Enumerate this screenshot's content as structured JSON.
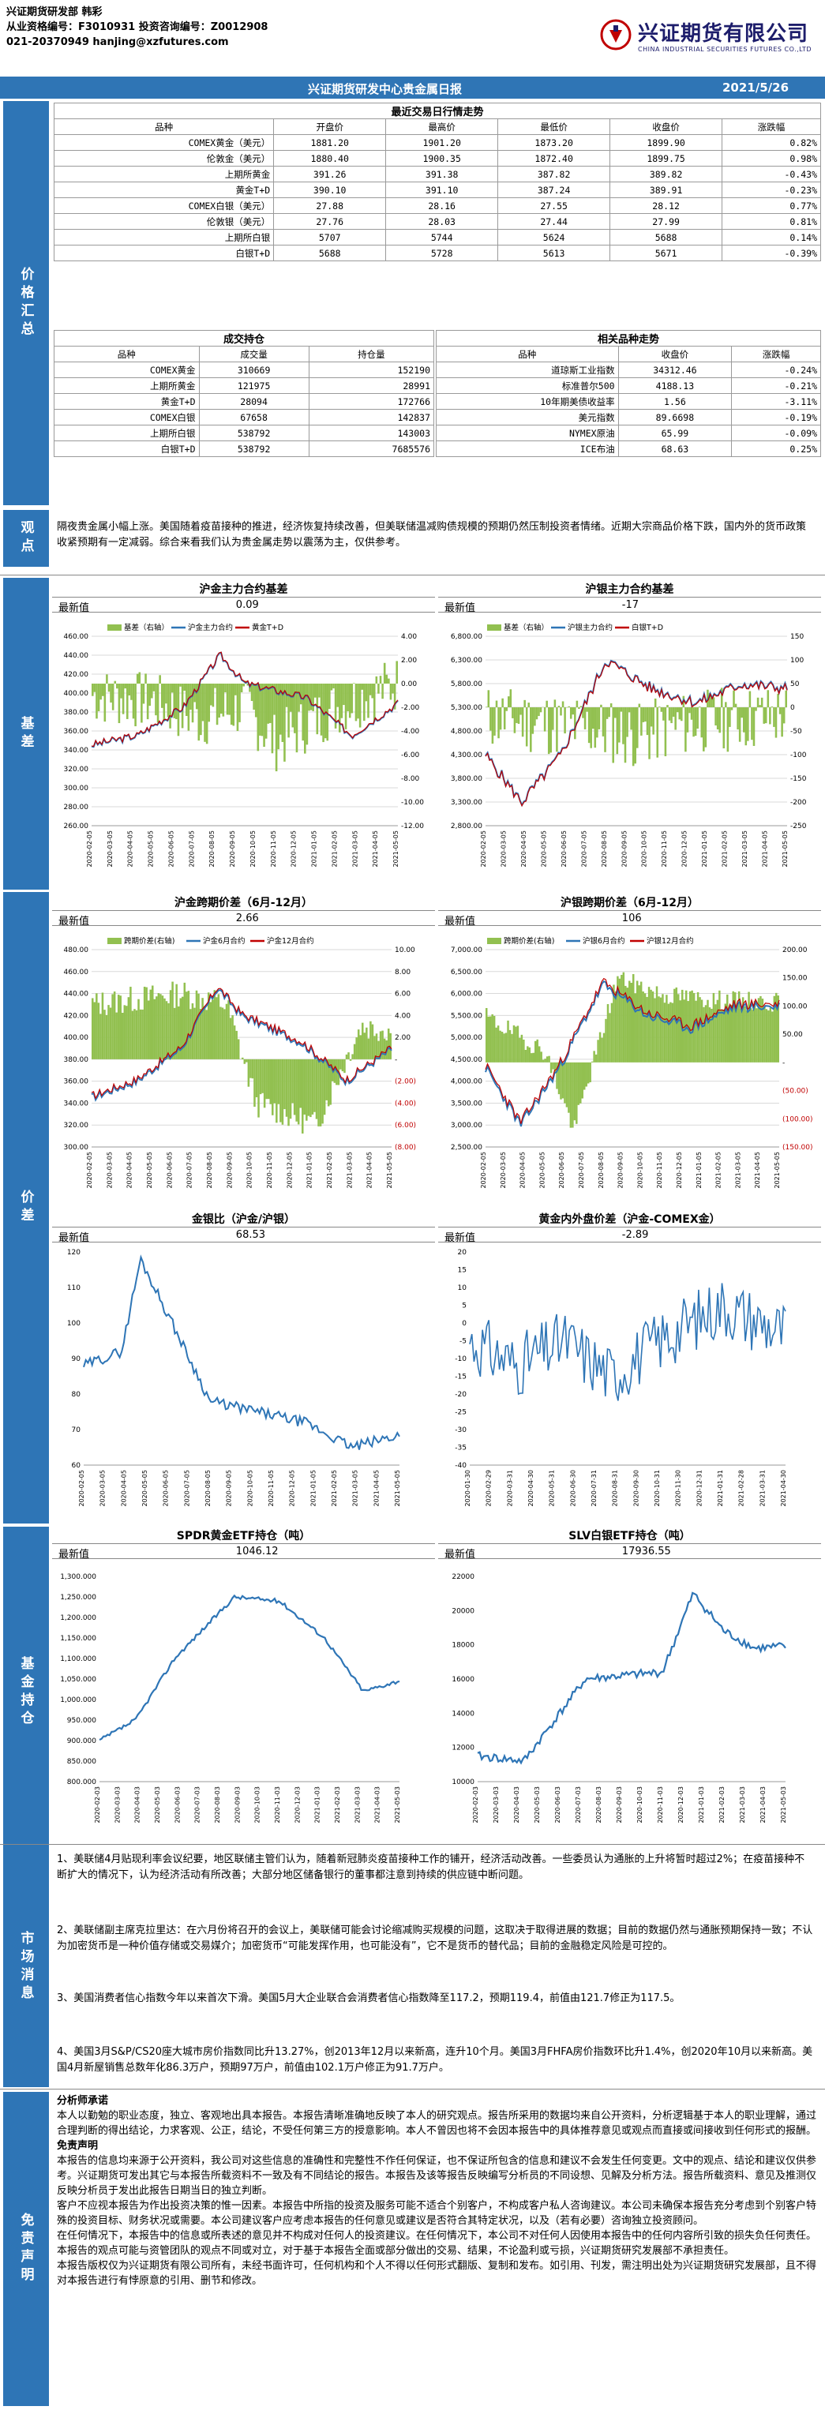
{
  "header": {
    "line1": "兴证期货研发部 韩彩",
    "line2": "从业资格编号：F3010931 投资咨询编号：Z0012908",
    "line3": "021-20370949 hanjing@xzfutures.com",
    "company_cn": "兴证期货有限公司",
    "company_en": "CHINA INDUSTRIAL SECURITIES FUTURES CO.,LTD"
  },
  "title_bar": {
    "title": "兴证期货研发中心贵金属日报",
    "date": "2021/5/26"
  },
  "sections": {
    "price": "价格汇总",
    "view": "观点",
    "basis": "基差",
    "spread": "价差",
    "etf": "基金持仓",
    "news": "市场消息",
    "disclaimer": "免责声明"
  },
  "quotes": {
    "heading": "最近交易日行情走势",
    "columns": [
      "品种",
      "开盘价",
      "最高价",
      "最低价",
      "收盘价",
      "涨跌幅"
    ],
    "rows": [
      [
        "COMEX黄金（美元）",
        "1881.20",
        "1901.20",
        "1873.20",
        "1899.90",
        "0.82%"
      ],
      [
        "伦敦金（美元）",
        "1880.40",
        "1900.35",
        "1872.40",
        "1899.75",
        "0.98%"
      ],
      [
        "上期所黄金",
        "391.26",
        "391.38",
        "387.82",
        "389.82",
        "-0.43%"
      ],
      [
        "黄金T+D",
        "390.10",
        "391.10",
        "387.24",
        "389.91",
        "-0.23%"
      ],
      [
        "COMEX白银（美元）",
        "27.88",
        "28.16",
        "27.55",
        "28.12",
        "0.77%"
      ],
      [
        "伦敦银（美元）",
        "27.76",
        "28.03",
        "27.44",
        "27.99",
        "0.81%"
      ],
      [
        "上期所白银",
        "5707",
        "5744",
        "5624",
        "5688",
        "0.14%"
      ],
      [
        "白银T+D",
        "5688",
        "5728",
        "5613",
        "5671",
        "-0.39%"
      ]
    ]
  },
  "volume": {
    "heading": "成交持仓",
    "columns": [
      "品种",
      "成交量",
      "持仓量"
    ],
    "rows": [
      [
        "COMEX黄金",
        "310669",
        "152190"
      ],
      [
        "上期所黄金",
        "121975",
        "28991"
      ],
      [
        "黄金T+D",
        "28094",
        "172766"
      ],
      [
        "COMEX白银",
        "67658",
        "142837"
      ],
      [
        "上期所白银",
        "538792",
        "143003"
      ],
      [
        "白银T+D",
        "538792",
        "7685576"
      ]
    ]
  },
  "related": {
    "heading": "相关品种走势",
    "columns": [
      "品种",
      "收盘价",
      "涨跌幅"
    ],
    "rows": [
      [
        "道琼斯工业指数",
        "34312.46",
        "-0.24%"
      ],
      [
        "标准普尔500",
        "4188.13",
        "-0.21%"
      ],
      [
        "10年期美债收益率",
        "1.56",
        "-3.11%"
      ],
      [
        "美元指数",
        "89.6698",
        "-0.19%"
      ],
      [
        "NYMEX原油",
        "65.99",
        "-0.09%"
      ],
      [
        "ICE布油",
        "68.63",
        "0.25%"
      ]
    ]
  },
  "view_text": "隔夜贵金属小幅上涨。美国随着疫苗接种的推进，经济恢复持续改善，但美联储温减购债规模的预期仍然压制投资者情绪。近期大宗商品价格下跌，国内外的货币政策收紧预期有一定减弱。综合来看我们认为贵金属走势以震荡为主，仅供参考。",
  "latest_label": "最新值",
  "charts": {
    "gold_basis": {
      "title": "沪金主力合约基差",
      "latest": "0.09",
      "legend": [
        "基差（右轴）",
        "沪金主力合约",
        "黄金T+D"
      ]
    },
    "silver_basis": {
      "title": "沪银主力合约基差",
      "latest": "-17",
      "legend": [
        "基差（右轴）",
        "沪银主力合约",
        "白银T+D"
      ]
    },
    "gold_spread": {
      "title": "沪金跨期价差（6月-12月）",
      "latest": "2.66",
      "legend": [
        "跨期价差(右轴)",
        "沪金6月合约",
        "沪金12月合约"
      ]
    },
    "silver_spread": {
      "title": "沪银跨期价差（6月-12月）",
      "latest": "106",
      "legend": [
        "跨期价差(右轴)",
        "沪银6月合约",
        "沪银12月合约"
      ]
    },
    "gold_silver_ratio": {
      "title": "金银比（沪金/沪银）",
      "latest": "68.53"
    },
    "gold_inout": {
      "title": "黄金内外盘价差（沪金-COMEX金）",
      "latest": "-2.89"
    },
    "spdr": {
      "title": "SPDR黄金ETF持仓（吨）",
      "latest": "1046.12"
    },
    "slv": {
      "title": "SLV白银ETF持仓（吨）",
      "latest": "17936.55"
    }
  },
  "axes": {
    "gold_basis_left": [
      "460.00",
      "440.00",
      "420.00",
      "400.00",
      "380.00",
      "360.00",
      "340.00",
      "320.00",
      "300.00",
      "280.00",
      "260.00"
    ],
    "gold_basis_right": [
      "4.00",
      "2.00",
      "0.00",
      "-2.00",
      "-4.00",
      "-6.00",
      "-8.00",
      "-10.00",
      "-12.00"
    ],
    "silver_basis_left": [
      "6,800.00",
      "6,300.00",
      "5,800.00",
      "5,300.00",
      "4,800.00",
      "4,300.00",
      "3,800.00",
      "3,300.00",
      "2,800.00"
    ],
    "silver_basis_right": [
      "150",
      "100",
      "50",
      "0",
      "-50",
      "-100",
      "-150",
      "-200",
      "-250"
    ],
    "gold_spread_left": [
      "480.00",
      "460.00",
      "440.00",
      "420.00",
      "400.00",
      "380.00",
      "360.00",
      "340.00",
      "320.00",
      "300.00"
    ],
    "gold_spread_right": [
      "10.00",
      "8.00",
      "6.00",
      "4.00",
      "2.00",
      "-",
      "(2.00)",
      "(4.00)",
      "(6.00)",
      "(8.00)"
    ],
    "silver_spread_left": [
      "7,000.00",
      "6,500.00",
      "6,000.00",
      "5,500.00",
      "5,000.00",
      "4,500.00",
      "4,000.00",
      "3,500.00",
      "3,000.00",
      "2,500.00"
    ],
    "silver_spread_right": [
      "200.00",
      "150.00",
      "100.00",
      "50.00",
      "-",
      "(50.00)",
      "(100.00)",
      "(150.00)"
    ],
    "ratio_left": [
      "120",
      "110",
      "100",
      "90",
      "80",
      "70",
      "60"
    ],
    "inout_left": [
      "20",
      "15",
      "10",
      "5",
      "0",
      "-5",
      "-10",
      "-15",
      "-20",
      "-25",
      "-30",
      "-35",
      "-40"
    ],
    "spdr_left": [
      "1,300.000",
      "1,250.000",
      "1,200.000",
      "1,150.000",
      "1,100.000",
      "1,050.000",
      "1,000.000",
      "950.000",
      "900.000",
      "850.000",
      "800.000"
    ],
    "slv_left": [
      "22000",
      "20000",
      "18000",
      "16000",
      "14000",
      "12000",
      "10000"
    ],
    "dates_a": [
      "2020-02-05",
      "2020-03-05",
      "2020-04-05",
      "2020-05-05",
      "2020-06-05",
      "2020-07-05",
      "2020-08-05",
      "2020-09-05",
      "2020-10-05",
      "2020-11-05",
      "2020-12-05",
      "2021-01-05",
      "2021-02-05",
      "2021-03-05",
      "2021-04-05",
      "2021-05-05"
    ],
    "dates_b": [
      "2020-01-30",
      "2020-02-29",
      "2020-03-31",
      "2020-04-30",
      "2020-05-31",
      "2020-06-30",
      "2020-07-31",
      "2020-08-31",
      "2020-09-30",
      "2020-10-31",
      "2020-11-30",
      "2020-12-31",
      "2021-01-31",
      "2021-02-28",
      "2021-03-31",
      "2021-04-30"
    ],
    "dates_c": [
      "2020-02-03",
      "2020-03-03",
      "2020-04-03",
      "2020-05-03",
      "2020-06-03",
      "2020-07-03",
      "2020-08-03",
      "2020-09-03",
      "2020-10-03",
      "2020-11-03",
      "2020-12-03",
      "2021-01-03",
      "2021-02-03",
      "2021-03-03",
      "2021-04-03",
      "2021-05-03"
    ]
  },
  "news": [
    "1、美联储4月贴现利率会议纪要，地区联储主管们认为，随着新冠肺炎疫苗接种工作的铺开，经济活动改善。一些委员认为通胀的上升将暂时超过2%；在疫苗接种不断扩大的情况下，认为经济活动有所改善；大部分地区储备银行的董事都注意到持续的供应链中断问题。",
    "2、美联储副主席克拉里达：在六月份将召开的会议上，美联储可能会讨论缩减购买规模的问题，这取决于取得进展的数据；目前的数据仍然与通胀预期保持一致；不认为加密货币是一种价值存储或交易媒介；加密货币“可能发挥作用，也可能没有”，它不是货币的替代品；目前的金融稳定风险是可控的。",
    "3、美国消费者信心指数今年以来首次下滑。美国5月大企业联合会消费者信心指数降至117.2，预期119.4，前值由121.7修正为117.5。",
    "4、美国3月S&P/CS20座大城市房价指数同比升13.27%，创2013年12月以来新高，连升10个月。美国3月FHFA房价指数环比升1.4%，创2020年10月以来新高。美国4月新屋销售总数年化86.3万户，预期97万户，前值由102.1万户修正为91.7万户。"
  ],
  "disclaimer": {
    "h1": "分析师承诺",
    "p1": "本人以勤勉的职业态度，独立、客观地出具本报告。本报告清晰准确地反映了本人的研究观点。报告所采用的数据均来自公开资料，分析逻辑基于本人的职业理解，通过合理判断的得出结论，力求客观、公正，结论，不受任何第三方的授意影响。本人不曾因也将不会因本报告中的具体推荐意见或观点而直接或间接收到任何形式的报酬。",
    "h2": "免责声明",
    "p2": "本报告的信息均来源于公开资料，我公司对这些信息的准确性和完整性不作任何保证，也不保证所包含的信息和建议不会发生任何变更。文中的观点、结论和建议仅供参考。兴证期货可发出其它与本报告所载资料不一致及有不同结论的报告。本报告及该等报告反映编写分析员的不同设想、见解及分析方法。报告所载资料、意见及推测仅反映分析员于发出此报告日期当日的独立判断。",
    "p3": "客户不应视本报告为作出投资决策的惟一因素。本报告中所指的投资及服务可能不适合个别客户，不构成客户私人咨询建议。本公司未确保本报告充分考虑到个别客户特殊的投资目标、财务状况或需要。本公司建议客户应考虑本报告的任何意见或建议是否符合其特定状况，以及（若有必要）咨询独立投资顾问。",
    "p4": "在任何情况下，本报告中的信息或所表述的意见并不构成对任何人的投资建议。在任何情况下，本公司不对任何人因使用本报告中的任何内容所引致的损失负任何责任。",
    "p5": "本报告的观点可能与资管团队的观点不同或对立，对于基于本报告全面或部分做出的交易、结果，不论盈利或亏损，兴证期货研究发展部不承担责任。",
    "p6": "本报告版权仅为兴证期货有限公司所有，未经书面许可，任何机构和个人不得以任何形式翻版、复制和发布。如引用、刊发，需注明出处为兴证期货研究发展部，且不得对本报告进行有悖原意的引用、删节和修改。"
  }
}
